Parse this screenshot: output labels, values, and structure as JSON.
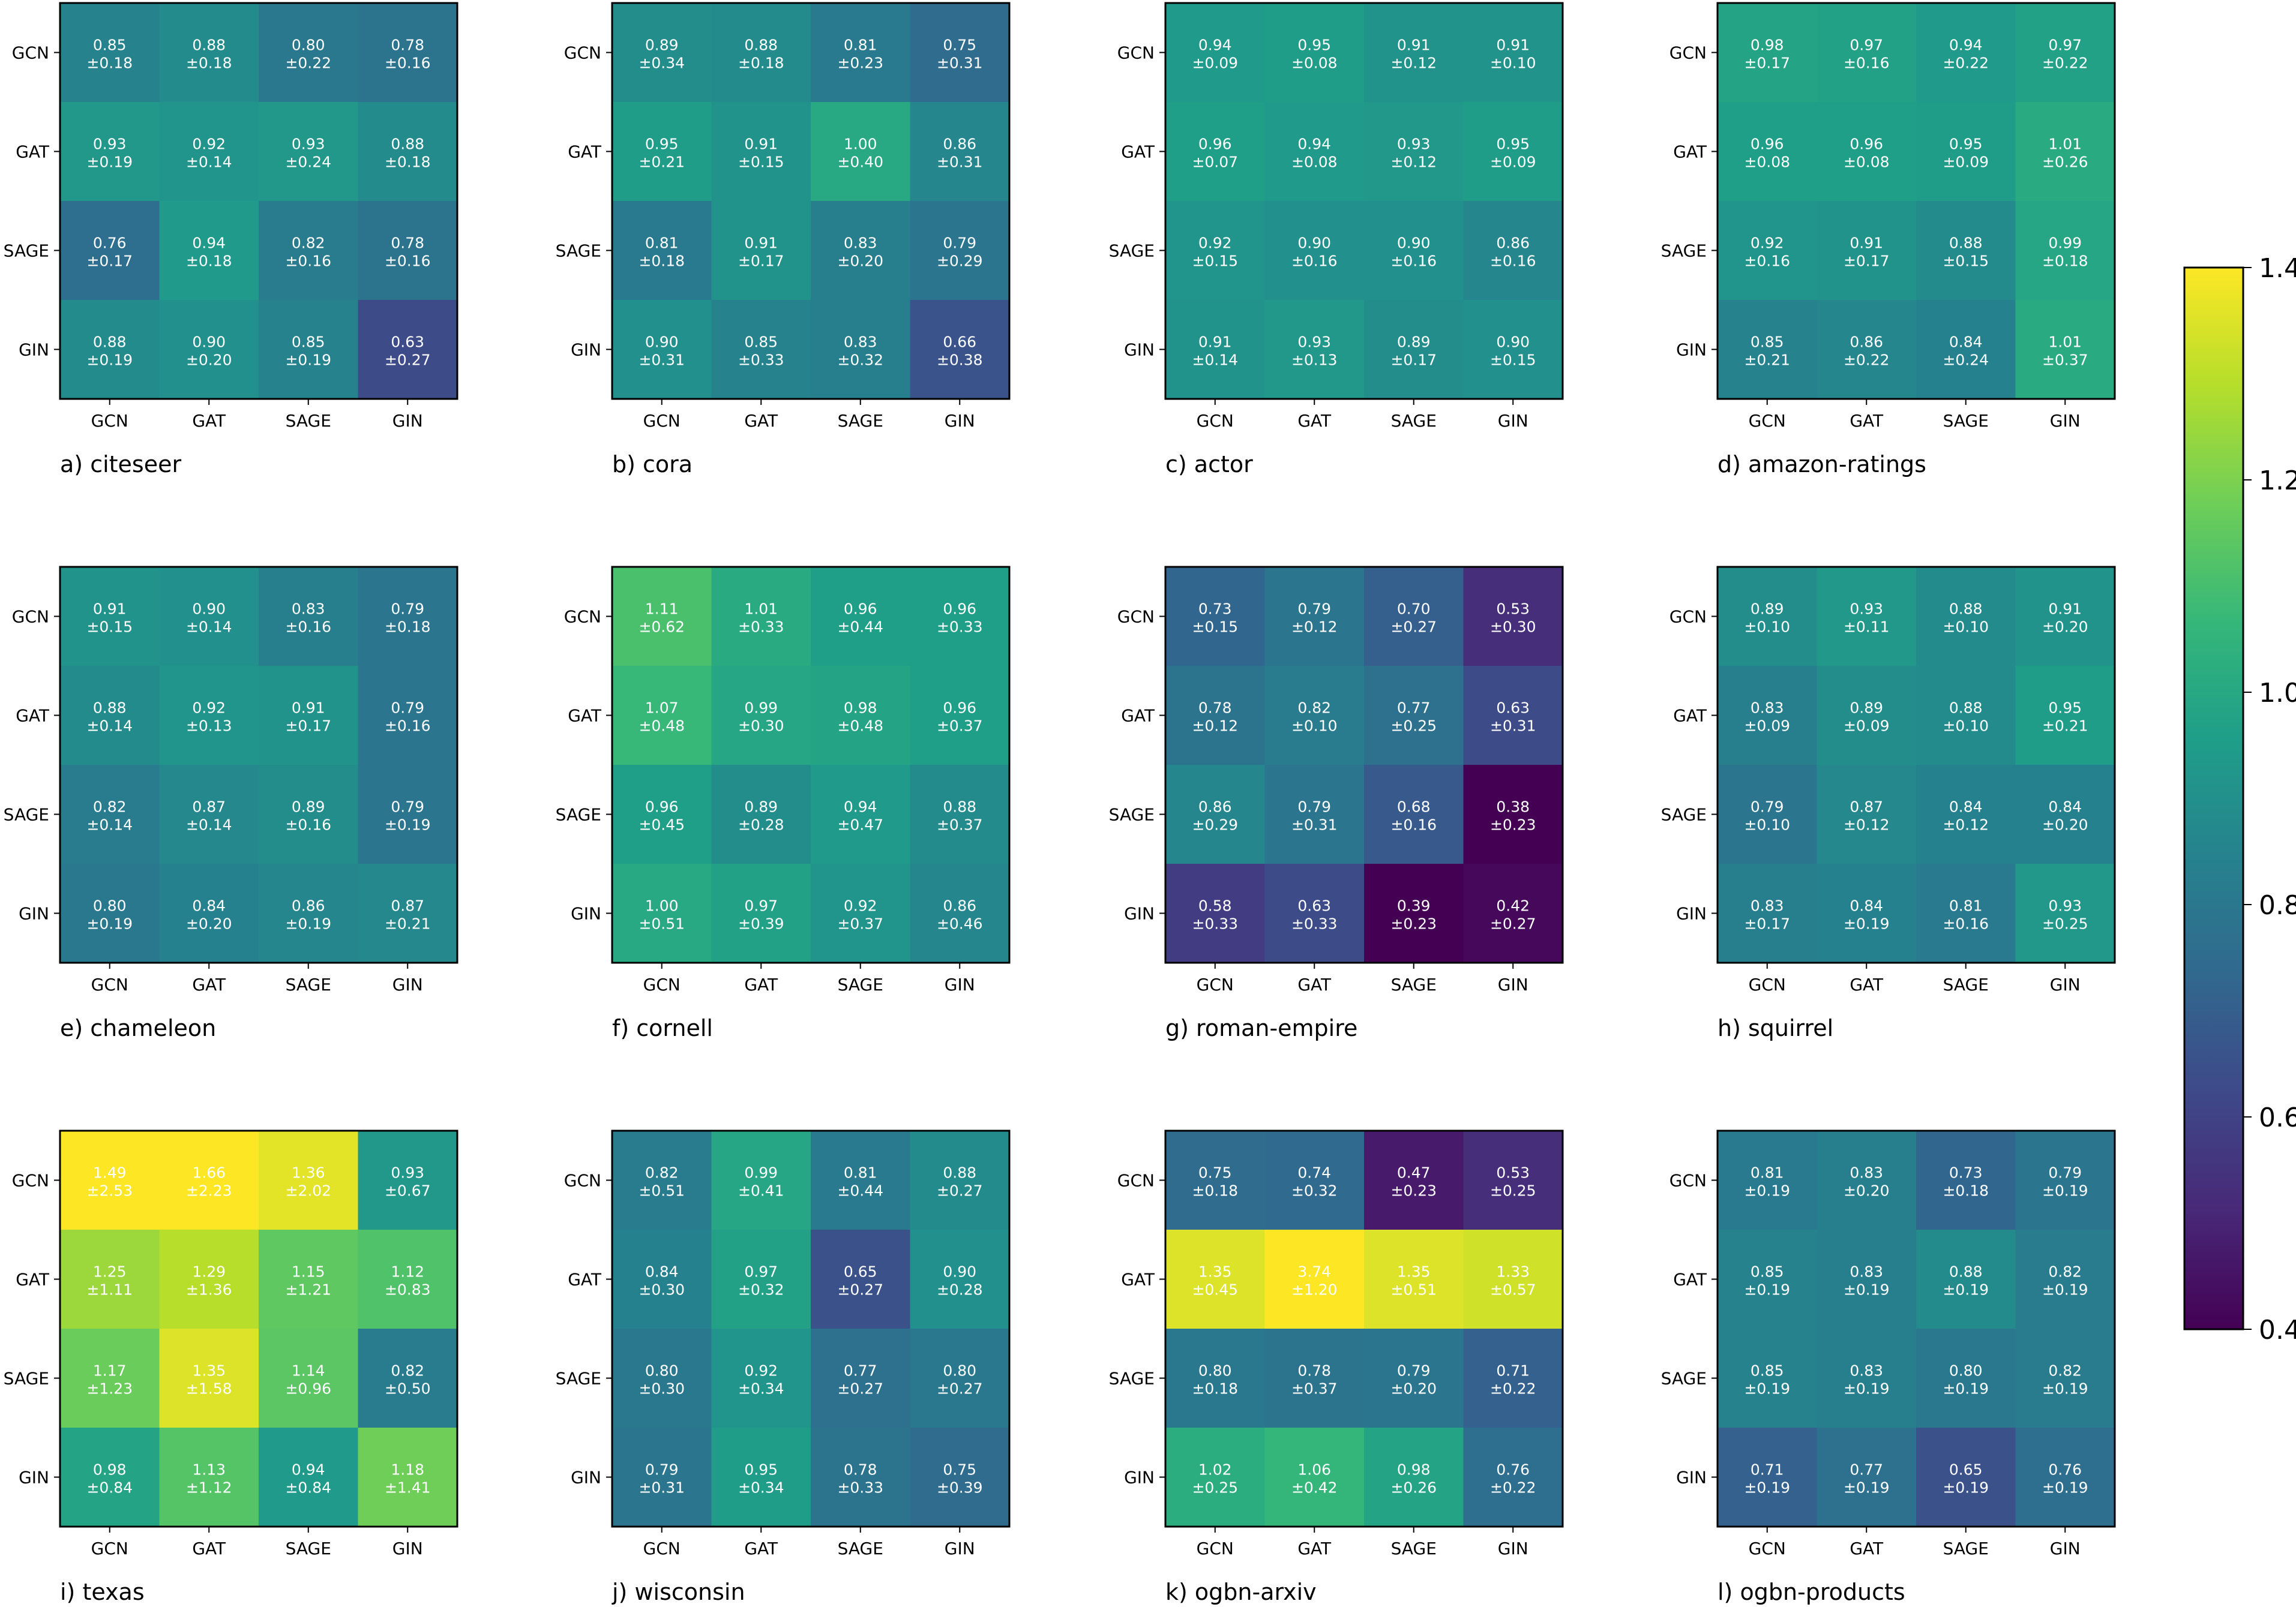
{
  "chart_data": [
    {
      "type": "heatmap",
      "caption": "a) citeseer",
      "rows": [
        "GCN",
        "GAT",
        "SAGE",
        "GIN"
      ],
      "cols": [
        "GCN",
        "GAT",
        "SAGE",
        "GIN"
      ],
      "values": [
        [
          0.85,
          0.88,
          0.8,
          0.78
        ],
        [
          0.93,
          0.92,
          0.93,
          0.88
        ],
        [
          0.76,
          0.94,
          0.82,
          0.78
        ],
        [
          0.88,
          0.9,
          0.85,
          0.63
        ]
      ],
      "labels": [
        [
          "0.85",
          "0.88",
          "0.80",
          "0.78"
        ],
        [
          "0.93",
          "0.92",
          "0.93",
          "0.88"
        ],
        [
          "0.76",
          "0.94",
          "0.82",
          "0.78"
        ],
        [
          "0.88",
          "0.90",
          "0.85",
          "0.63"
        ]
      ],
      "errors": [
        [
          "±0.18",
          "±0.18",
          "±0.22",
          "±0.16"
        ],
        [
          "±0.19",
          "±0.14",
          "±0.24",
          "±0.18"
        ],
        [
          "±0.17",
          "±0.18",
          "±0.16",
          "±0.16"
        ],
        [
          "±0.19",
          "±0.20",
          "±0.19",
          "±0.27"
        ]
      ]
    },
    {
      "type": "heatmap",
      "caption": "b) cora",
      "rows": [
        "GCN",
        "GAT",
        "SAGE",
        "GIN"
      ],
      "cols": [
        "GCN",
        "GAT",
        "SAGE",
        "GIN"
      ],
      "values": [
        [
          0.89,
          0.88,
          0.81,
          0.75
        ],
        [
          0.95,
          0.91,
          1.0,
          0.86
        ],
        [
          0.81,
          0.91,
          0.83,
          0.79
        ],
        [
          0.9,
          0.85,
          0.83,
          0.66
        ]
      ],
      "labels": [
        [
          "0.89",
          "0.88",
          "0.81",
          "0.75"
        ],
        [
          "0.95",
          "0.91",
          "1.00",
          "0.86"
        ],
        [
          "0.81",
          "0.91",
          "0.83",
          "0.79"
        ],
        [
          "0.90",
          "0.85",
          "0.83",
          "0.66"
        ]
      ],
      "errors": [
        [
          "±0.34",
          "±0.18",
          "±0.23",
          "±0.31"
        ],
        [
          "±0.21",
          "±0.15",
          "±0.40",
          "±0.31"
        ],
        [
          "±0.18",
          "±0.17",
          "±0.20",
          "±0.29"
        ],
        [
          "±0.31",
          "±0.33",
          "±0.32",
          "±0.38"
        ]
      ]
    },
    {
      "type": "heatmap",
      "caption": "c) actor",
      "rows": [
        "GCN",
        "GAT",
        "SAGE",
        "GIN"
      ],
      "cols": [
        "GCN",
        "GAT",
        "SAGE",
        "GIN"
      ],
      "values": [
        [
          0.94,
          0.95,
          0.91,
          0.91
        ],
        [
          0.96,
          0.94,
          0.93,
          0.95
        ],
        [
          0.92,
          0.9,
          0.9,
          0.86
        ],
        [
          0.91,
          0.93,
          0.89,
          0.9
        ]
      ],
      "labels": [
        [
          "0.94",
          "0.95",
          "0.91",
          "0.91"
        ],
        [
          "0.96",
          "0.94",
          "0.93",
          "0.95"
        ],
        [
          "0.92",
          "0.90",
          "0.90",
          "0.86"
        ],
        [
          "0.91",
          "0.93",
          "0.89",
          "0.90"
        ]
      ],
      "errors": [
        [
          "±0.09",
          "±0.08",
          "±0.12",
          "±0.10"
        ],
        [
          "±0.07",
          "±0.08",
          "±0.12",
          "±0.09"
        ],
        [
          "±0.15",
          "±0.16",
          "±0.16",
          "±0.16"
        ],
        [
          "±0.14",
          "±0.13",
          "±0.17",
          "±0.15"
        ]
      ]
    },
    {
      "type": "heatmap",
      "caption": "d) amazon-ratings",
      "rows": [
        "GCN",
        "GAT",
        "SAGE",
        "GIN"
      ],
      "cols": [
        "GCN",
        "GAT",
        "SAGE",
        "GIN"
      ],
      "values": [
        [
          0.98,
          0.97,
          0.94,
          0.97
        ],
        [
          0.96,
          0.96,
          0.95,
          1.01
        ],
        [
          0.92,
          0.91,
          0.88,
          0.99
        ],
        [
          0.85,
          0.86,
          0.84,
          1.01
        ]
      ],
      "labels": [
        [
          "0.98",
          "0.97",
          "0.94",
          "0.97"
        ],
        [
          "0.96",
          "0.96",
          "0.95",
          "1.01"
        ],
        [
          "0.92",
          "0.91",
          "0.88",
          "0.99"
        ],
        [
          "0.85",
          "0.86",
          "0.84",
          "1.01"
        ]
      ],
      "errors": [
        [
          "±0.17",
          "±0.16",
          "±0.22",
          "±0.22"
        ],
        [
          "±0.08",
          "±0.08",
          "±0.09",
          "±0.26"
        ],
        [
          "±0.16",
          "±0.17",
          "±0.15",
          "±0.18"
        ],
        [
          "±0.21",
          "±0.22",
          "±0.24",
          "±0.37"
        ]
      ]
    },
    {
      "type": "heatmap",
      "caption": "e) chameleon",
      "rows": [
        "GCN",
        "GAT",
        "SAGE",
        "GIN"
      ],
      "cols": [
        "GCN",
        "GAT",
        "SAGE",
        "GIN"
      ],
      "values": [
        [
          0.91,
          0.9,
          0.83,
          0.79
        ],
        [
          0.88,
          0.92,
          0.91,
          0.79
        ],
        [
          0.82,
          0.87,
          0.89,
          0.79
        ],
        [
          0.8,
          0.84,
          0.86,
          0.87
        ]
      ],
      "labels": [
        [
          "0.91",
          "0.90",
          "0.83",
          "0.79"
        ],
        [
          "0.88",
          "0.92",
          "0.91",
          "0.79"
        ],
        [
          "0.82",
          "0.87",
          "0.89",
          "0.79"
        ],
        [
          "0.80",
          "0.84",
          "0.86",
          "0.87"
        ]
      ],
      "errors": [
        [
          "±0.15",
          "±0.14",
          "±0.16",
          "±0.18"
        ],
        [
          "±0.14",
          "±0.13",
          "±0.17",
          "±0.16"
        ],
        [
          "±0.14",
          "±0.14",
          "±0.16",
          "±0.19"
        ],
        [
          "±0.19",
          "±0.20",
          "±0.19",
          "±0.21"
        ]
      ]
    },
    {
      "type": "heatmap",
      "caption": "f) cornell",
      "rows": [
        "GCN",
        "GAT",
        "SAGE",
        "GIN"
      ],
      "cols": [
        "GCN",
        "GAT",
        "SAGE",
        "GIN"
      ],
      "values": [
        [
          1.11,
          1.01,
          0.96,
          0.96
        ],
        [
          1.07,
          0.99,
          0.98,
          0.96
        ],
        [
          0.96,
          0.89,
          0.94,
          0.88
        ],
        [
          1.0,
          0.97,
          0.92,
          0.86
        ]
      ],
      "labels": [
        [
          "1.11",
          "1.01",
          "0.96",
          "0.96"
        ],
        [
          "1.07",
          "0.99",
          "0.98",
          "0.96"
        ],
        [
          "0.96",
          "0.89",
          "0.94",
          "0.88"
        ],
        [
          "1.00",
          "0.97",
          "0.92",
          "0.86"
        ]
      ],
      "errors": [
        [
          "±0.62",
          "±0.33",
          "±0.44",
          "±0.33"
        ],
        [
          "±0.48",
          "±0.30",
          "±0.48",
          "±0.37"
        ],
        [
          "±0.45",
          "±0.28",
          "±0.47",
          "±0.37"
        ],
        [
          "±0.51",
          "±0.39",
          "±0.37",
          "±0.46"
        ]
      ]
    },
    {
      "type": "heatmap",
      "caption": "g) roman-empire",
      "rows": [
        "GCN",
        "GAT",
        "SAGE",
        "GIN"
      ],
      "cols": [
        "GCN",
        "GAT",
        "SAGE",
        "GIN"
      ],
      "values": [
        [
          0.73,
          0.79,
          0.7,
          0.53
        ],
        [
          0.78,
          0.82,
          0.77,
          0.63
        ],
        [
          0.86,
          0.79,
          0.68,
          0.38
        ],
        [
          0.58,
          0.63,
          0.39,
          0.42
        ]
      ],
      "labels": [
        [
          "0.73",
          "0.79",
          "0.70",
          "0.53"
        ],
        [
          "0.78",
          "0.82",
          "0.77",
          "0.63"
        ],
        [
          "0.86",
          "0.79",
          "0.68",
          "0.38"
        ],
        [
          "0.58",
          "0.63",
          "0.39",
          "0.42"
        ]
      ],
      "errors": [
        [
          "±0.15",
          "±0.12",
          "±0.27",
          "±0.30"
        ],
        [
          "±0.12",
          "±0.10",
          "±0.25",
          "±0.31"
        ],
        [
          "±0.29",
          "±0.31",
          "±0.16",
          "±0.23"
        ],
        [
          "±0.33",
          "±0.33",
          "±0.23",
          "±0.27"
        ]
      ]
    },
    {
      "type": "heatmap",
      "caption": "h) squirrel",
      "rows": [
        "GCN",
        "GAT",
        "SAGE",
        "GIN"
      ],
      "cols": [
        "GCN",
        "GAT",
        "SAGE",
        "GIN"
      ],
      "values": [
        [
          0.89,
          0.93,
          0.88,
          0.91
        ],
        [
          0.83,
          0.89,
          0.88,
          0.95
        ],
        [
          0.79,
          0.87,
          0.84,
          0.84
        ],
        [
          0.83,
          0.84,
          0.81,
          0.93
        ]
      ],
      "labels": [
        [
          "0.89",
          "0.93",
          "0.88",
          "0.91"
        ],
        [
          "0.83",
          "0.89",
          "0.88",
          "0.95"
        ],
        [
          "0.79",
          "0.87",
          "0.84",
          "0.84"
        ],
        [
          "0.83",
          "0.84",
          "0.81",
          "0.93"
        ]
      ],
      "errors": [
        [
          "±0.10",
          "±0.11",
          "±0.10",
          "±0.20"
        ],
        [
          "±0.09",
          "±0.09",
          "±0.10",
          "±0.21"
        ],
        [
          "±0.10",
          "±0.12",
          "±0.12",
          "±0.20"
        ],
        [
          "±0.17",
          "±0.19",
          "±0.16",
          "±0.25"
        ]
      ]
    },
    {
      "type": "heatmap",
      "caption": "i) texas",
      "rows": [
        "GCN",
        "GAT",
        "SAGE",
        "GIN"
      ],
      "cols": [
        "GCN",
        "GAT",
        "SAGE",
        "GIN"
      ],
      "values": [
        [
          1.49,
          1.66,
          1.36,
          0.93
        ],
        [
          1.25,
          1.29,
          1.15,
          1.12
        ],
        [
          1.17,
          1.35,
          1.14,
          0.82
        ],
        [
          0.98,
          1.13,
          0.94,
          1.18
        ]
      ],
      "labels": [
        [
          "1.49",
          "1.66",
          "1.36",
          "0.93"
        ],
        [
          "1.25",
          "1.29",
          "1.15",
          "1.12"
        ],
        [
          "1.17",
          "1.35",
          "1.14",
          "0.82"
        ],
        [
          "0.98",
          "1.13",
          "0.94",
          "1.18"
        ]
      ],
      "errors": [
        [
          "±2.53",
          "±2.23",
          "±2.02",
          "±0.67"
        ],
        [
          "±1.11",
          "±1.36",
          "±1.21",
          "±0.83"
        ],
        [
          "±1.23",
          "±1.58",
          "±0.96",
          "±0.50"
        ],
        [
          "±0.84",
          "±1.12",
          "±0.84",
          "±1.41"
        ]
      ]
    },
    {
      "type": "heatmap",
      "caption": "j) wisconsin",
      "rows": [
        "GCN",
        "GAT",
        "SAGE",
        "GIN"
      ],
      "cols": [
        "GCN",
        "GAT",
        "SAGE",
        "GIN"
      ],
      "values": [
        [
          0.82,
          0.99,
          0.81,
          0.88
        ],
        [
          0.84,
          0.97,
          0.65,
          0.9
        ],
        [
          0.8,
          0.92,
          0.77,
          0.8
        ],
        [
          0.79,
          0.95,
          0.78,
          0.75
        ]
      ],
      "labels": [
        [
          "0.82",
          "0.99",
          "0.81",
          "0.88"
        ],
        [
          "0.84",
          "0.97",
          "0.65",
          "0.90"
        ],
        [
          "0.80",
          "0.92",
          "0.77",
          "0.80"
        ],
        [
          "0.79",
          "0.95",
          "0.78",
          "0.75"
        ]
      ],
      "errors": [
        [
          "±0.51",
          "±0.41",
          "±0.44",
          "±0.27"
        ],
        [
          "±0.30",
          "±0.32",
          "±0.27",
          "±0.28"
        ],
        [
          "±0.30",
          "±0.34",
          "±0.27",
          "±0.27"
        ],
        [
          "±0.31",
          "±0.34",
          "±0.33",
          "±0.39"
        ]
      ]
    },
    {
      "type": "heatmap",
      "caption": "k) ogbn-arxiv",
      "rows": [
        "GCN",
        "GAT",
        "SAGE",
        "GIN"
      ],
      "cols": [
        "GCN",
        "GAT",
        "SAGE",
        "GIN"
      ],
      "values": [
        [
          0.75,
          0.74,
          0.47,
          0.53
        ],
        [
          1.35,
          3.74,
          1.35,
          1.33
        ],
        [
          0.8,
          0.78,
          0.79,
          0.71
        ],
        [
          1.02,
          1.06,
          0.98,
          0.76
        ]
      ],
      "labels": [
        [
          "0.75",
          "0.74",
          "0.47",
          "0.53"
        ],
        [
          "1.35",
          "3.74",
          "1.35",
          "1.33"
        ],
        [
          "0.80",
          "0.78",
          "0.79",
          "0.71"
        ],
        [
          "1.02",
          "1.06",
          "0.98",
          "0.76"
        ]
      ],
      "errors": [
        [
          "±0.18",
          "±0.32",
          "±0.23",
          "±0.25"
        ],
        [
          "±0.45",
          "±1.20",
          "±0.51",
          "±0.57"
        ],
        [
          "±0.18",
          "±0.37",
          "±0.20",
          "±0.22"
        ],
        [
          "±0.25",
          "±0.42",
          "±0.26",
          "±0.22"
        ]
      ]
    },
    {
      "type": "heatmap",
      "caption": "l) ogbn-products",
      "rows": [
        "GCN",
        "GAT",
        "SAGE",
        "GIN"
      ],
      "cols": [
        "GCN",
        "GAT",
        "SAGE",
        "GIN"
      ],
      "values": [
        [
          0.81,
          0.83,
          0.73,
          0.79
        ],
        [
          0.85,
          0.83,
          0.88,
          0.82
        ],
        [
          0.85,
          0.83,
          0.8,
          0.82
        ],
        [
          0.71,
          0.77,
          0.65,
          0.76
        ]
      ],
      "labels": [
        [
          "0.81",
          "0.83",
          "0.73",
          "0.79"
        ],
        [
          "0.85",
          "0.83",
          "0.88",
          "0.82"
        ],
        [
          "0.85",
          "0.83",
          "0.80",
          "0.82"
        ],
        [
          "0.71",
          "0.77",
          "0.65",
          "0.76"
        ]
      ],
      "errors": [
        [
          "±0.19",
          "±0.20",
          "±0.18",
          "±0.19"
        ],
        [
          "±0.19",
          "±0.19",
          "±0.19",
          "±0.19"
        ],
        [
          "±0.19",
          "±0.19",
          "±0.19",
          "±0.19"
        ],
        [
          "±0.19",
          "±0.19",
          "±0.19",
          "±0.19"
        ]
      ]
    }
  ],
  "colorbar": {
    "colormap": "viridis",
    "vmin": 0.4,
    "vmax": 1.4,
    "ticks": [
      0.4,
      0.6,
      0.8,
      1.0,
      1.2,
      1.4
    ],
    "tick_labels": [
      "0.4",
      "0.6",
      "0.8",
      "1.0",
      "1.2",
      "1.4"
    ]
  },
  "colors": {
    "border": "#000000",
    "cell_text": "#ffffff",
    "viridis_stops": [
      "#440154",
      "#482878",
      "#3e4989",
      "#31688e",
      "#26828e",
      "#1f9e89",
      "#35b779",
      "#6ece58",
      "#b5de2b",
      "#fde725"
    ]
  }
}
